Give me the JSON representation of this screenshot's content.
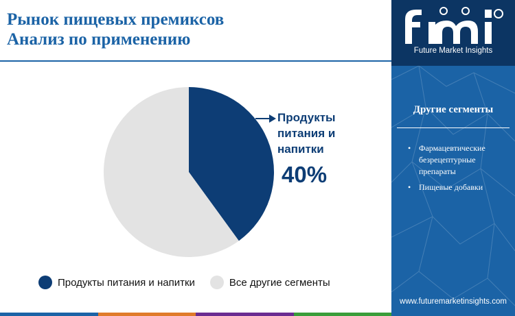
{
  "title": {
    "line1": "Рынок пищевых премиксов",
    "line2": "Анализ по применению"
  },
  "chart_data": {
    "type": "pie",
    "categories": [
      "Продукты питания и напитки",
      "Все другие сегменты"
    ],
    "values": [
      40,
      60
    ],
    "colors": [
      "#0d3d75",
      "#e3e3e3"
    ],
    "start_angle_deg": 0,
    "direction": "clockwise",
    "callout": {
      "label_lines": [
        "Продукты",
        "питания и",
        "напитки"
      ],
      "value": "40%"
    },
    "legend": {
      "placement": "bottom",
      "items": [
        {
          "label": "Продукты питания и напитки",
          "color": "#0d3d75"
        },
        {
          "label": "Все другие сегменты",
          "color": "#e3e3e3"
        }
      ]
    }
  },
  "sidebar": {
    "logo_caption": "Future Market Insights",
    "heading": "Другие сегменты",
    "items": [
      "Фармацевтические безрецептурные препараты",
      "Пищевые добавки"
    ],
    "bullet": "•",
    "website": "www.futuremarketinsights.com"
  },
  "colors": {
    "brand_blue": "#1b63a6",
    "dark_blue": "#0c3563",
    "accent_bar": [
      "#1b63a6",
      "#e07b2a",
      "#6a2c91",
      "#3a9d3a"
    ]
  }
}
